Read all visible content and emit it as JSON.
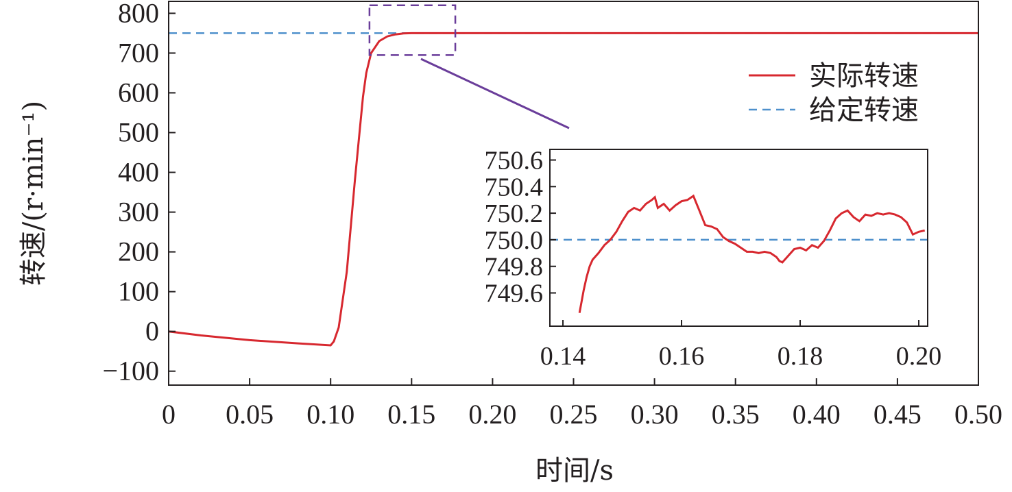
{
  "chart_data": [
    {
      "type": "line",
      "xlabel": "时间/s",
      "ylabel": "转速/(r·min⁻¹)",
      "xlim": [
        0,
        0.5
      ],
      "ylim": [
        -135,
        830
      ],
      "xticks": [
        0,
        0.05,
        0.1,
        0.15,
        0.2,
        0.25,
        0.3,
        0.35,
        0.4,
        0.45,
        0.5
      ],
      "xtick_labels": [
        "0",
        "0.05",
        "0.10",
        "0.15",
        "0.20",
        "0.25",
        "0.30",
        "0.35",
        "0.40",
        "0.45",
        "0.50"
      ],
      "yticks": [
        -100,
        0,
        100,
        200,
        300,
        400,
        500,
        600,
        700,
        800
      ],
      "ytick_labels": [
        "−100",
        "0",
        "100",
        "200",
        "300",
        "400",
        "500",
        "600",
        "700",
        "800"
      ],
      "grid": false,
      "legend": "right",
      "series": [
        {
          "name": "实际转速",
          "color": "#d7282f",
          "style": "solid",
          "x": [
            0,
            0.02,
            0.05,
            0.08,
            0.1,
            0.102,
            0.105,
            0.11,
            0.115,
            0.12,
            0.122,
            0.125,
            0.13,
            0.135,
            0.14,
            0.145,
            0.15,
            0.2,
            0.3,
            0.4,
            0.5
          ],
          "y": [
            0,
            -10,
            -22,
            -30,
            -35,
            -25,
            10,
            150,
            380,
            590,
            650,
            700,
            730,
            742,
            747,
            749.5,
            750,
            750,
            750,
            750,
            750
          ]
        },
        {
          "name": "给定转速",
          "color": "#4e90cc",
          "style": "dashed",
          "x": [
            0,
            0.5
          ],
          "y": [
            750,
            750
          ]
        }
      ],
      "zoom_region": {
        "x": [
          0.124,
          0.177
        ],
        "y": [
          695,
          820
        ]
      }
    },
    {
      "type": "line",
      "xlim": [
        0.1378,
        0.2015
      ],
      "ylim": [
        749.35,
        750.68
      ],
      "xticks": [
        0.14,
        0.16,
        0.18,
        0.2
      ],
      "xtick_labels": [
        "0.14",
        "0.16",
        "0.18",
        "0.20"
      ],
      "yticks": [
        749.6,
        749.8,
        750.0,
        750.2,
        750.4,
        750.6
      ],
      "ytick_labels": [
        "749.6",
        "749.8",
        "750.0",
        "750.2",
        "750.4",
        "750.6"
      ],
      "series": [
        {
          "name": "实际转速",
          "color": "#d7282f",
          "x": [
            0.1428,
            0.1435,
            0.144,
            0.1445,
            0.145,
            0.146,
            0.147,
            0.148,
            0.149,
            0.15,
            0.151,
            0.152,
            0.153,
            0.154,
            0.155,
            0.1555,
            0.156,
            0.157,
            0.158,
            0.159,
            0.16,
            0.161,
            0.162,
            0.163,
            0.164,
            0.165,
            0.166,
            0.167,
            0.168,
            0.169,
            0.17,
            0.171,
            0.172,
            0.173,
            0.174,
            0.175,
            0.176,
            0.1765,
            0.177,
            0.178,
            0.179,
            0.18,
            0.181,
            0.182,
            0.183,
            0.184,
            0.185,
            0.186,
            0.187,
            0.188,
            0.189,
            0.19,
            0.191,
            0.192,
            0.193,
            0.194,
            0.195,
            0.196,
            0.197,
            0.198,
            0.199,
            0.2,
            0.201
          ],
          "y": [
            749.45,
            749.62,
            749.72,
            749.8,
            749.85,
            749.9,
            749.96,
            750.0,
            750.06,
            750.14,
            750.21,
            750.24,
            750.22,
            750.27,
            750.3,
            750.32,
            750.24,
            750.27,
            750.22,
            750.26,
            750.29,
            750.3,
            750.33,
            750.22,
            750.11,
            750.1,
            750.08,
            750.02,
            749.99,
            749.97,
            749.94,
            749.91,
            749.91,
            749.9,
            749.91,
            749.9,
            749.87,
            749.84,
            749.83,
            749.88,
            749.93,
            749.94,
            749.92,
            749.96,
            749.94,
            749.99,
            750.07,
            750.16,
            750.2,
            750.22,
            750.17,
            750.14,
            750.19,
            750.18,
            750.2,
            750.19,
            750.2,
            750.19,
            750.17,
            750.13,
            750.04,
            750.06,
            750.07
          ]
        },
        {
          "name": "给定转速",
          "color": "#4e90cc",
          "x": [
            0.1378,
            0.2015
          ],
          "y": [
            750,
            750
          ]
        }
      ]
    }
  ],
  "colors": {
    "axis": "#231f20",
    "zoom_box": "#6a3d9a",
    "connector": "#6a3d9a"
  }
}
